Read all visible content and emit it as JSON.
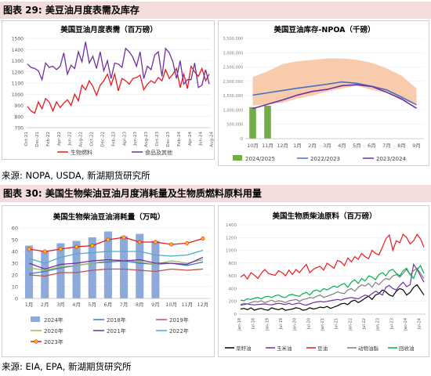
{
  "figure29": {
    "label": "图表 29:",
    "title": "美豆油月度表需及库存",
    "source": "来源: NOPA, USDA, 新湖期货研究所"
  },
  "figure30": {
    "label": "图表 30:",
    "title": "美国生物柴油豆油月度消耗量及生物质燃料原料用量",
    "source": "来源: EIA, EPA, 新湖期货研究所"
  },
  "chart_data": [
    {
      "id": "chart1",
      "type": "line",
      "title": "美国豆油月度表需（百万磅）",
      "ylim": [
        700,
        1500
      ],
      "yticks": [
        700,
        800,
        900,
        1000,
        1100,
        1200,
        1300,
        1400,
        1500
      ],
      "xticks": [
        "Oct-21",
        "Dec-21",
        "Feb-22",
        "Apr-22",
        "Jun-22",
        "Aug-22",
        "Oct-22",
        "Dec-22",
        "Feb-23",
        "Apr-23",
        "Jun-23",
        "Aug-23",
        "Oct-23",
        "Dec-23",
        "Feb-24",
        "Apr-24",
        "Jun-24",
        "Aug-24"
      ],
      "series": [
        {
          "name": "生物燃料",
          "color": "#e8191e",
          "values": [
            890,
            850,
            830,
            930,
            870,
            960,
            930,
            850,
            930,
            880,
            920,
            950,
            900,
            1000,
            940,
            1080,
            1040,
            1120,
            1070,
            990,
            1080,
            1120,
            1180,
            1080,
            1180,
            1030,
            1140,
            1120,
            1090,
            1140,
            1150,
            1170,
            1040,
            1090,
            1120,
            1100,
            1150,
            1120,
            1220,
            1140,
            1180,
            1230,
            1060,
            1180,
            1050,
            1250,
            1200,
            1160,
            1230,
            1120,
            1180
          ]
        },
        {
          "name": "食品及其他",
          "color": "#7030a0",
          "values": [
            1270,
            1240,
            1230,
            1210,
            1130,
            1280,
            1240,
            1250,
            1220,
            1250,
            1370,
            1180,
            1260,
            1230,
            1380,
            1290,
            1470,
            1280,
            1340,
            1230,
            1380,
            1210,
            1300,
            1140,
            1280,
            1270,
            1240,
            1410,
            1380,
            1330,
            1250,
            1380,
            1140,
            1250,
            1220,
            1350,
            1380,
            1160,
            1410,
            1370,
            1290,
            1140,
            1300,
            1090,
            1130,
            1130,
            1280,
            1060,
            1080,
            1220,
            1090
          ]
        }
      ]
    },
    {
      "id": "chart2",
      "type": "line",
      "title": "美国豆油库存-NPOA（千磅）",
      "ylim": [
        0,
        3500000
      ],
      "yticks": [
        0,
        500000,
        1000000,
        1500000,
        2000000,
        2500000,
        3000000,
        3500000
      ],
      "ytick_labels": [
        "0",
        "500,000",
        "1,000,000",
        "1,500,000",
        "2,000,000",
        "2,500,000",
        "3,000,000",
        "3,500,000"
      ],
      "categories": [
        "10月",
        "11月",
        "12月",
        "1月",
        "2月",
        "3月",
        "4月",
        "5月",
        "6月",
        "7月",
        "8月",
        "9月"
      ],
      "band": {
        "low": [
          1150000,
          1200000,
          1250000,
          1400000,
          1500000,
          1650000,
          1750000,
          1850000,
          1700000,
          1600000,
          1350000,
          1200000
        ],
        "high": [
          2150000,
          2350000,
          2600000,
          2700000,
          2750000,
          2800000,
          2800000,
          2750000,
          2650000,
          2450000,
          2200000,
          1750000
        ]
      },
      "bars": {
        "name": "2024/2025",
        "color": "#70ad47",
        "values": [
          1100000,
          1150000
        ]
      },
      "series": [
        {
          "name": "2022/2023",
          "color": "#4472c4",
          "values": [
            1520000,
            1600000,
            1680000,
            1760000,
            1830000,
            1900000,
            1980000,
            1930000,
            1830000,
            1700000,
            1450000,
            1180000
          ]
        },
        {
          "name": "2023/2024",
          "color": "#7030a0",
          "values": [
            1050000,
            1200000,
            1350000,
            1520000,
            1650000,
            1720000,
            1850000,
            1880000,
            1820000,
            1620000,
            1380000,
            1060000
          ]
        }
      ]
    },
    {
      "id": "chart3",
      "type": "bar",
      "title": "美国生物柴油豆油消耗量（万吨）",
      "ylim": [
        0,
        60
      ],
      "yticks": [
        0,
        10,
        20,
        30,
        40,
        50,
        60
      ],
      "categories": [
        "1月",
        "2月",
        "3月",
        "4月",
        "5月",
        "6月",
        "7月",
        "8月",
        "9月",
        "10月",
        "11月",
        "12月"
      ],
      "bars": {
        "name": "2024年",
        "color": "#8eaadb",
        "values": [
          45,
          40,
          47,
          49,
          52,
          57,
          53,
          55,
          49,
          null,
          null,
          null
        ]
      },
      "series": [
        {
          "name": "2018年",
          "color": "#4472c4",
          "values": [
            21,
            23,
            26,
            28,
            30,
            31,
            32,
            30,
            29,
            30,
            28,
            31
          ]
        },
        {
          "name": "2019年",
          "color": "#c0504d",
          "values": [
            20,
            19,
            22,
            22,
            24,
            25,
            25,
            24,
            23,
            25,
            24,
            25
          ]
        },
        {
          "name": "2020年",
          "color": "#9bbb59",
          "values": [
            26,
            24,
            27,
            28,
            30,
            32,
            33,
            31,
            29,
            32,
            30,
            33
          ]
        },
        {
          "name": "2021年",
          "color": "#7030a0",
          "values": [
            30,
            25,
            29,
            30,
            32,
            33,
            32,
            33,
            30,
            30,
            29,
            35
          ]
        },
        {
          "name": "2022年",
          "color": "#4bacc6",
          "values": [
            34,
            30,
            35,
            38,
            39,
            40,
            40,
            40,
            37,
            36,
            37,
            41
          ]
        },
        {
          "name": "2023年",
          "color": "#e8191e",
          "values": [
            42,
            40,
            42,
            44,
            45,
            50,
            52,
            48,
            48,
            46,
            47,
            51
          ],
          "marker": "#ffc000"
        }
      ]
    },
    {
      "id": "chart4",
      "type": "line",
      "title": "美国生物质柴油原料（百万磅）",
      "ylim": [
        0,
        1400
      ],
      "yticks": [
        0,
        200,
        400,
        600,
        800,
        1000,
        1200,
        1400
      ],
      "xticks": [
        "Jan-18",
        "Jul-18",
        "Jan-19",
        "Jul-19",
        "Jan-20",
        "Jul-20",
        "Jan-21",
        "Jul-21",
        "Jan-22",
        "Jul-22",
        "Jan-23",
        "Jul-23",
        "Jan-24",
        "Jul-24"
      ],
      "series": [
        {
          "name": "菜籽油",
          "color": "#000000",
          "values": [
            80,
            90,
            70,
            100,
            60,
            80,
            90,
            70,
            60,
            100,
            80,
            70,
            90,
            60,
            70,
            80,
            100,
            90,
            60,
            70,
            100,
            80,
            90,
            110,
            100,
            120,
            90,
            110,
            130,
            160,
            170,
            150,
            200,
            220,
            180,
            210,
            250,
            280,
            230,
            300,
            320,
            380,
            350,
            300,
            280,
            360,
            400,
            380,
            300,
            340,
            420,
            460,
            380,
            300
          ]
        },
        {
          "name": "玉米油",
          "color": "#7030a0",
          "values": [
            140,
            150,
            160,
            150,
            145,
            150,
            155,
            160,
            150,
            145,
            160,
            170,
            160,
            150,
            170,
            150,
            165,
            175,
            150,
            140,
            160,
            180,
            190,
            200,
            190,
            200,
            210,
            220,
            230,
            220,
            240,
            250,
            260,
            250,
            240,
            270,
            300,
            280,
            320,
            360,
            330,
            300,
            420,
            450,
            400,
            380,
            450,
            500,
            430,
            460,
            780,
            700,
            600,
            500
          ]
        },
        {
          "name": "豆油",
          "color": "#e8191e",
          "values": [
            580,
            620,
            550,
            650,
            610,
            560,
            640,
            700,
            640,
            620,
            610,
            680,
            650,
            600,
            690,
            620,
            700,
            650,
            720,
            780,
            650,
            700,
            730,
            750,
            690,
            800,
            760,
            720,
            840,
            820,
            760,
            880,
            820,
            900,
            860,
            950,
            900,
            870,
            1000,
            950,
            930,
            1050,
            1180,
            1240,
            1000,
            1150,
            1120,
            1250,
            1200,
            1100,
            1150,
            1250,
            1180,
            1050
          ]
        },
        {
          "name": "动物油脂",
          "color": "#7f7f7f",
          "values": [
            150,
            170,
            160,
            180,
            200,
            190,
            210,
            180,
            200,
            220,
            190,
            210,
            200,
            180,
            210,
            220,
            230,
            200,
            230,
            240,
            260,
            250,
            280,
            300,
            260,
            280,
            300,
            320,
            350,
            330,
            320,
            380,
            400,
            360,
            420,
            460,
            440,
            480,
            420,
            500,
            460,
            520,
            560,
            540,
            600,
            620,
            580,
            640,
            700,
            620,
            680,
            720,
            640,
            560
          ]
        },
        {
          "name": "回收油",
          "color": "#00b050",
          "values": [
            220,
            210,
            240,
            230,
            250,
            260,
            240,
            270,
            280,
            260,
            290,
            300,
            270,
            260,
            300,
            310,
            290,
            280,
            320,
            340,
            300,
            360,
            380,
            350,
            400,
            380,
            410,
            440,
            420,
            460,
            480,
            420,
            500,
            540,
            480,
            560,
            520,
            600,
            580,
            540,
            620,
            650,
            600,
            680,
            700,
            640,
            600,
            680,
            720,
            620,
            560,
            700,
            760,
            640
          ]
        }
      ]
    }
  ]
}
